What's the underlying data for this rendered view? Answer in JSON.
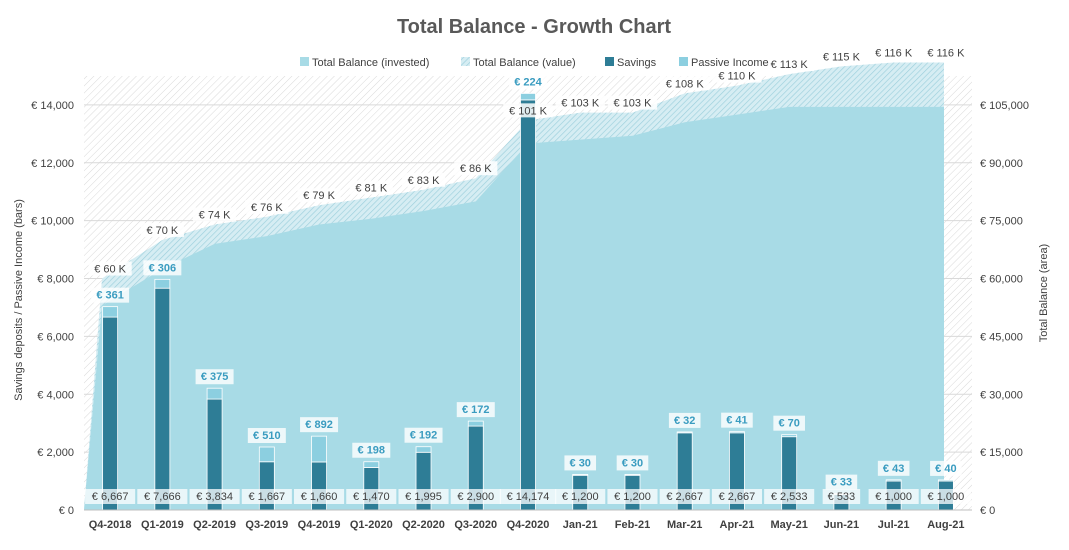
{
  "chart_data": {
    "type": "bar",
    "title": "Total Balance - Growth Chart",
    "ylabel_left": "Savings deposits / Passive Income (bars)",
    "ylabel_right": "Total Balance (area)",
    "ylim_left": [
      0,
      15000
    ],
    "ylim_right": [
      0,
      112500
    ],
    "yticks_left": [
      "€ 0",
      "€ 2,000",
      "€ 4,000",
      "€ 6,000",
      "€ 8,000",
      "€ 10,000",
      "€ 12,000",
      "€ 14,000"
    ],
    "yticks_right": [
      "€ 0",
      "€ 15,000",
      "€ 30,000",
      "€ 45,000",
      "€ 60,000",
      "€ 75,000",
      "€ 90,000",
      "€ 105,000"
    ],
    "grid": true,
    "legend_position": "top",
    "categories": [
      "Q4-2018",
      "Q1-2019",
      "Q2-2019",
      "Q3-2019",
      "Q4-2019",
      "Q1-2020",
      "Q2-2020",
      "Q3-2020",
      "Q4-2020",
      "Jan-21",
      "Feb-21",
      "Mar-21",
      "Apr-21",
      "May-21",
      "Jun-21",
      "Jul-21",
      "Aug-21"
    ],
    "series": [
      {
        "name": "Total Balance (invested)",
        "kind": "area",
        "axis": "right",
        "color": "#a8dbe6",
        "values": [
          53000,
          62500,
          69000,
          71000,
          74000,
          75500,
          77500,
          80000,
          95000,
          96000,
          97000,
          100500,
          102500,
          104500,
          104500,
          104500,
          104500
        ]
      },
      {
        "name": "Total Balance (value)",
        "kind": "area",
        "axis": "right",
        "color": "#c9e3ea",
        "values": [
          60000,
          70000,
          74000,
          76000,
          79000,
          81000,
          83000,
          86000,
          101000,
          103000,
          103000,
          108000,
          110000,
          113000,
          115000,
          116000,
          116000
        ],
        "labels": [
          "€ 60 K",
          "€ 70 K",
          "€ 74 K",
          "€ 76 K",
          "€ 79 K",
          "€ 81 K",
          "€ 83 K",
          "€ 86 K",
          "€ 101 K",
          "€ 103 K",
          "€ 103 K",
          "€ 108 K",
          "€ 110 K",
          "€ 113 K",
          "€ 115 K",
          "€ 116 K",
          "€ 116 K"
        ]
      },
      {
        "name": "Savings",
        "kind": "bar",
        "axis": "left",
        "color": "#2e7d96",
        "values": [
          6667,
          7666,
          3834,
          1667,
          1660,
          1470,
          1995,
          2900,
          14174,
          1200,
          1200,
          2667,
          2667,
          2533,
          533,
          1000,
          1000
        ],
        "labels": [
          "€ 6,667",
          "€ 7,666",
          "€ 3,834",
          "€ 1,667",
          "€ 1,660",
          "€ 1,470",
          "€ 1,995",
          "€ 2,900",
          "€ 14,174",
          "€ 1,200",
          "€ 1,200",
          "€ 2,667",
          "€ 2,667",
          "€ 2,533",
          "€ 533",
          "€ 1,000",
          "€ 1,000"
        ]
      },
      {
        "name": "Passive Income",
        "kind": "bar",
        "axis": "left",
        "color": "#8ccfe0",
        "values": [
          361,
          306,
          375,
          510,
          892,
          198,
          192,
          172,
          224,
          30,
          30,
          32,
          41,
          70,
          33,
          43,
          40
        ],
        "labels": [
          "€ 361",
          "€ 306",
          "€ 375",
          "€ 510",
          "€ 892",
          "€ 198",
          "€ 192",
          "€ 172",
          "€ 224",
          "€ 30",
          "€ 30",
          "€ 32",
          "€ 41",
          "€ 70",
          "€ 33",
          "€ 43",
          "€ 40"
        ]
      }
    ]
  }
}
